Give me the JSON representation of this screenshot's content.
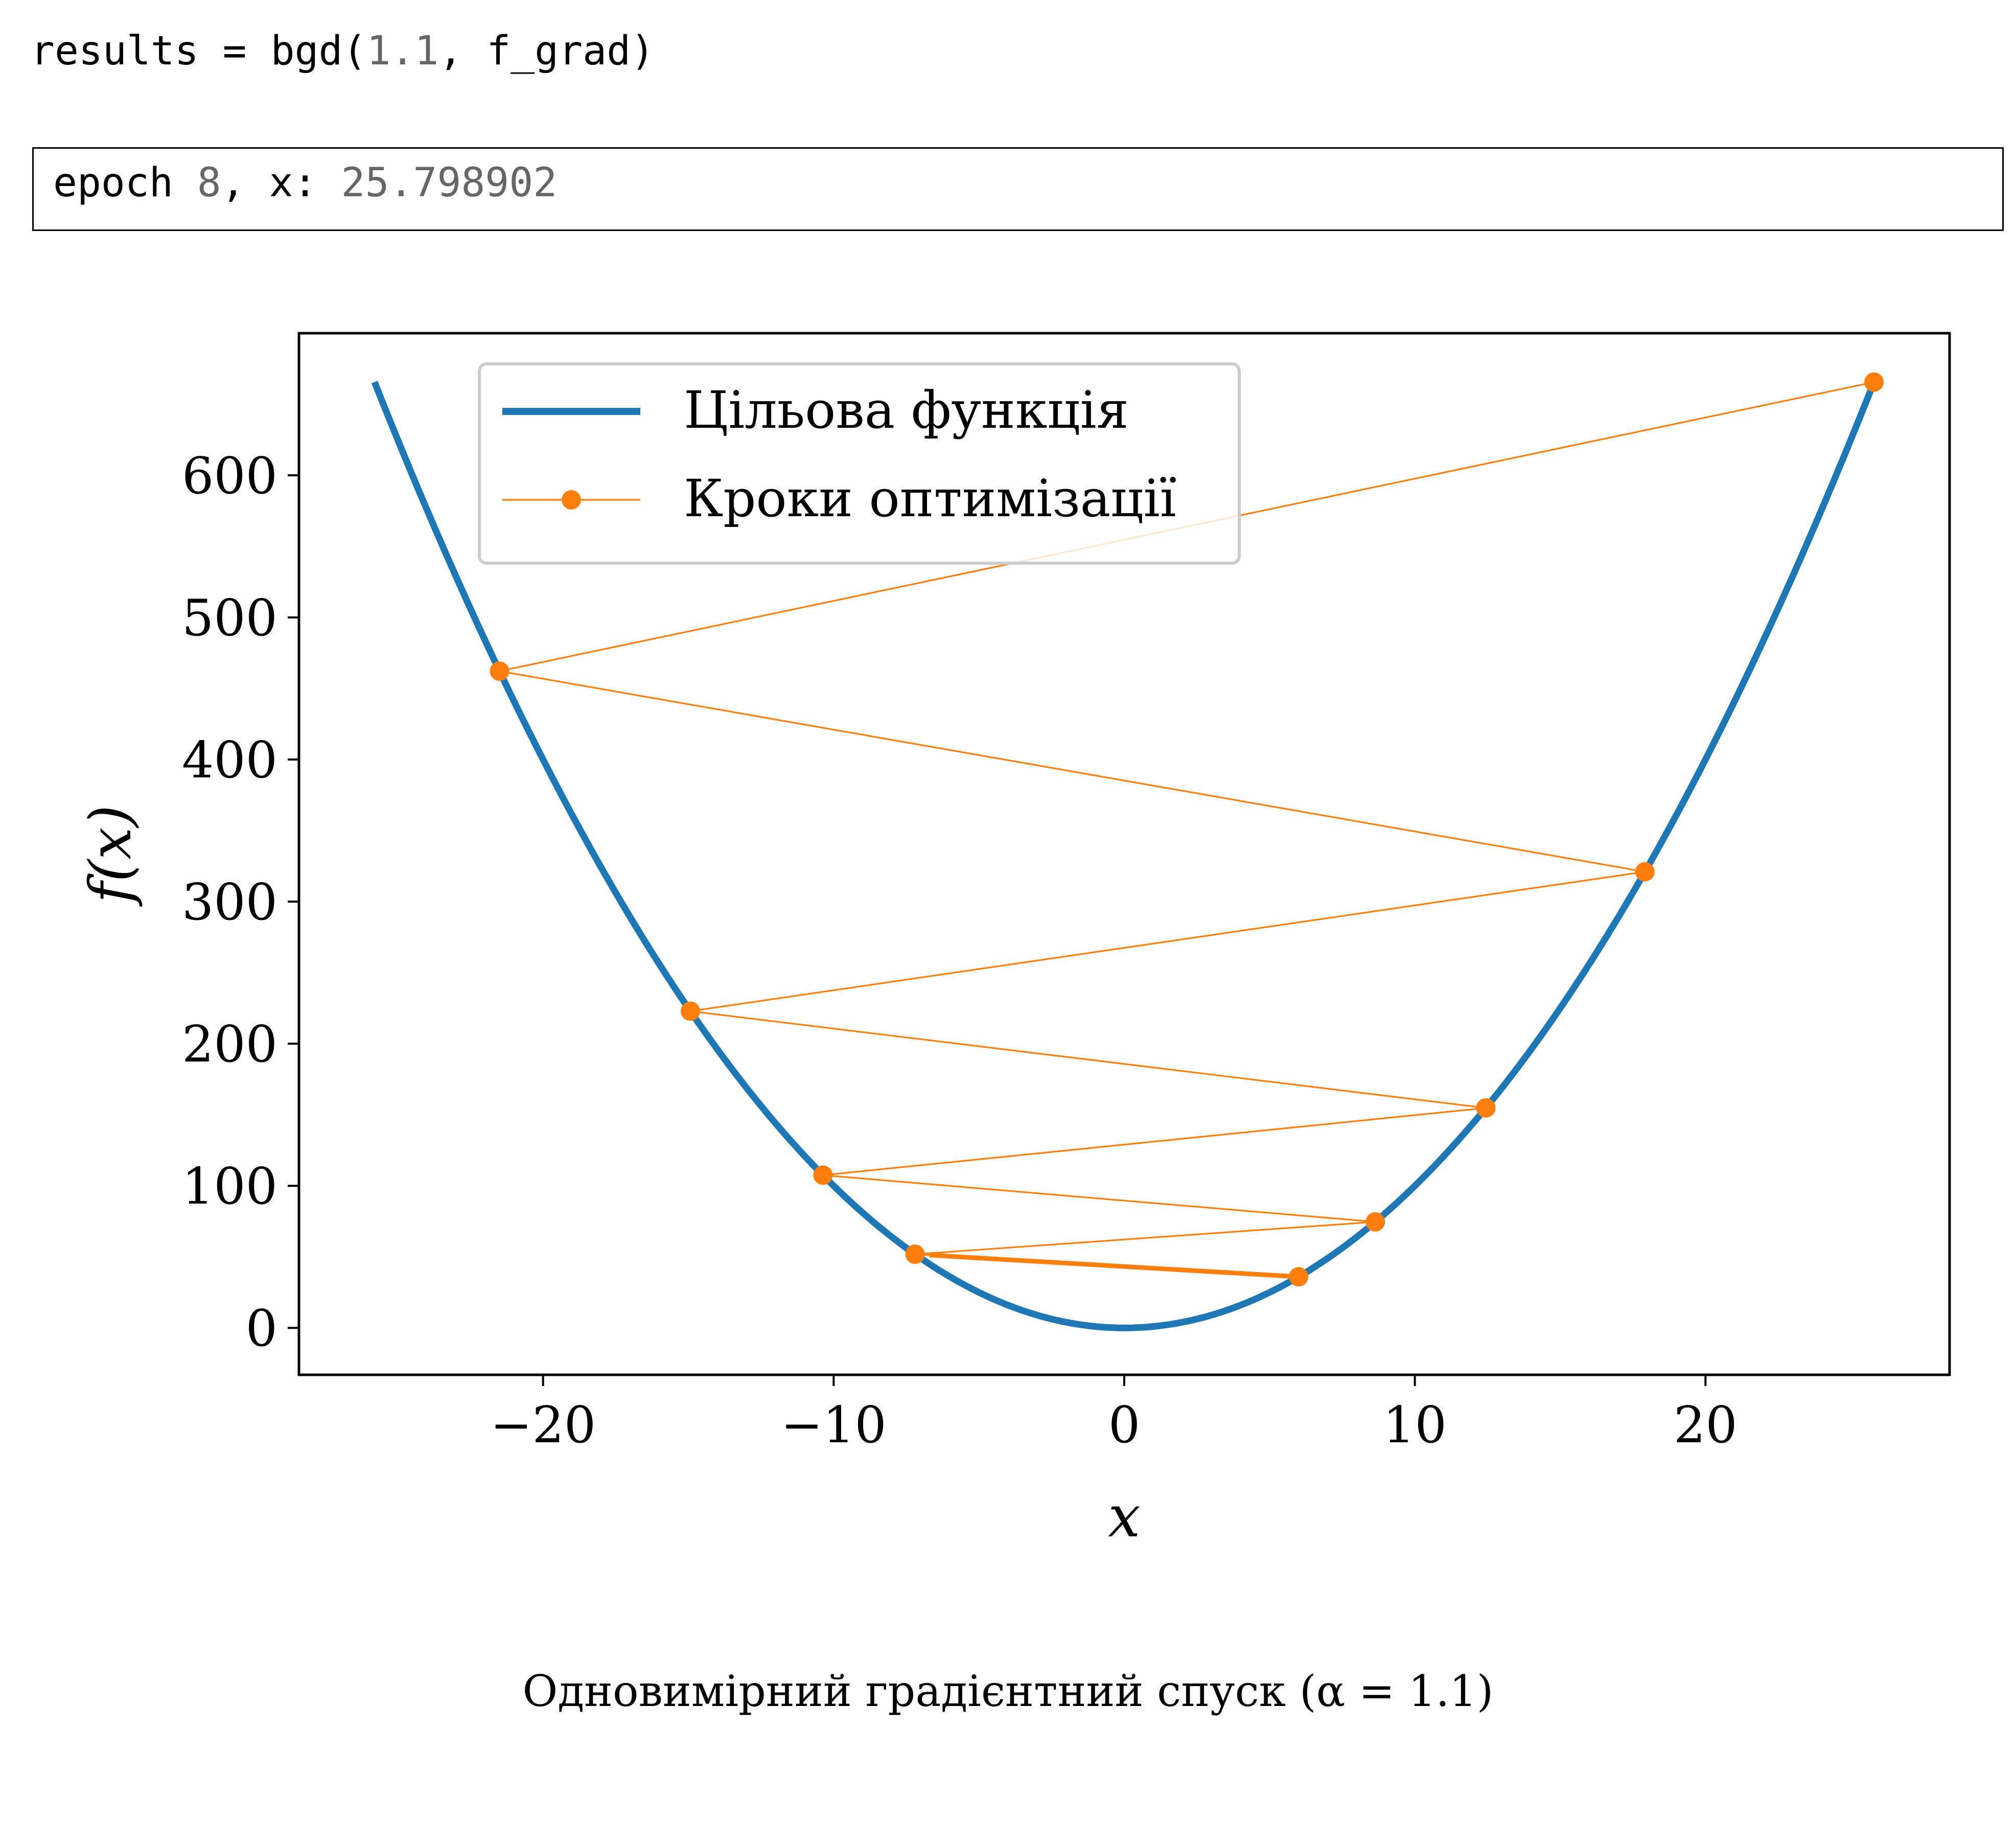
{
  "code_cell": {
    "fn_call_prefix": "results = bgd(",
    "arg_value": "1.1",
    "fn_call_suffix": ", f_grad)"
  },
  "output": {
    "label_epoch": "epoch ",
    "epoch_value": "8",
    "label_x": ", x: ",
    "x_value": "25.798902"
  },
  "caption": "Одновимірний градієнтний спуск (α = 1.1)",
  "colors": {
    "objective": "#1f77b4",
    "steps": "#ff7f0e"
  },
  "chart_data": {
    "type": "line",
    "xlabel": "x",
    "ylabel": "f(x)",
    "xlim": [
      -28.4,
      28.4
    ],
    "ylim": [
      -33,
      700
    ],
    "xticks": [
      -20,
      -10,
      0,
      10,
      20
    ],
    "yticks": [
      0,
      100,
      200,
      300,
      400,
      500,
      600
    ],
    "legend_position": "top-center",
    "series": [
      {
        "name": "Цільова функція",
        "kind": "curve",
        "function": "x^2",
        "x_range": [
          -25.8,
          25.8
        ]
      },
      {
        "name": "Кроки оптимізації",
        "kind": "line-with-markers",
        "points": [
          {
            "x": 6.0,
            "y": 36.0
          },
          {
            "x": -7.2,
            "y": 51.84
          },
          {
            "x": 8.64,
            "y": 74.65
          },
          {
            "x": -10.368,
            "y": 107.5
          },
          {
            "x": 12.442,
            "y": 154.8
          },
          {
            "x": -14.93,
            "y": 222.9
          },
          {
            "x": 17.916,
            "y": 321.0
          },
          {
            "x": -21.499,
            "y": 462.2
          },
          {
            "x": 25.799,
            "y": 665.6
          }
        ]
      }
    ]
  }
}
